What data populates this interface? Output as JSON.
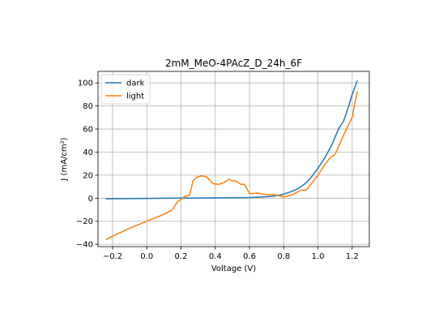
{
  "chart_data": {
    "type": "line",
    "title": "2mM_MeO-4PAcZ_D_24h_6F",
    "xlabel": "Voltage (V)",
    "ylabel": "J (mA/cm²)",
    "xlim": [
      -0.285,
      1.3
    ],
    "ylim": [
      -42,
      110
    ],
    "x_ticks": [
      -0.2,
      0.0,
      0.2,
      0.4,
      0.6,
      0.8,
      1.0,
      1.2
    ],
    "x_tick_labels": [
      "−0.2",
      "0.0",
      "0.2",
      "0.4",
      "0.6",
      "0.8",
      "1.0",
      "1.2"
    ],
    "y_ticks": [
      -40,
      -20,
      0,
      20,
      40,
      60,
      80,
      100
    ],
    "y_tick_labels": [
      "−40",
      "−20",
      "0",
      "20",
      "40",
      "60",
      "80",
      "100"
    ],
    "grid": true,
    "legend_position": "top-left",
    "series": [
      {
        "name": "dark",
        "color": "#1f77b4",
        "x": [
          -0.24,
          -0.1,
          0.0,
          0.1,
          0.2,
          0.3,
          0.4,
          0.5,
          0.6,
          0.65,
          0.7,
          0.75,
          0.8,
          0.85,
          0.88,
          0.92,
          0.96,
          1.0,
          1.04,
          1.08,
          1.12,
          1.15,
          1.18,
          1.2,
          1.23
        ],
        "values": [
          -0.5,
          -0.3,
          -0.2,
          0.0,
          0.1,
          0.2,
          0.3,
          0.4,
          0.6,
          0.9,
          1.3,
          2.0,
          3.5,
          6.0,
          8.0,
          12.0,
          18.0,
          26.0,
          35.0,
          46.0,
          60.0,
          67.0,
          80.0,
          90.0,
          102.0
        ]
      },
      {
        "name": "light",
        "color": "#ff7f0e",
        "x": [
          -0.24,
          -0.2,
          -0.1,
          0.0,
          0.1,
          0.15,
          0.18,
          0.2,
          0.22,
          0.25,
          0.27,
          0.29,
          0.32,
          0.35,
          0.37,
          0.39,
          0.42,
          0.45,
          0.48,
          0.5,
          0.52,
          0.55,
          0.57,
          0.6,
          0.62,
          0.65,
          0.68,
          0.7,
          0.75,
          0.8,
          0.85,
          0.9,
          0.93,
          0.97,
          1.0,
          1.03,
          1.07,
          1.1,
          1.13,
          1.16,
          1.2,
          1.23
        ],
        "values": [
          -36.0,
          -33.0,
          -26.0,
          -20.0,
          -14.0,
          -10.0,
          -3.0,
          -1.0,
          1.5,
          2.5,
          15.0,
          18.0,
          19.5,
          18.5,
          15.0,
          12.5,
          12.0,
          13.5,
          16.5,
          15.0,
          15.0,
          12.0,
          12.0,
          4.0,
          4.0,
          4.5,
          3.5,
          3.0,
          3.0,
          1.0,
          3.0,
          7.0,
          7.0,
          14.0,
          20.0,
          27.0,
          35.0,
          38.0,
          48.0,
          58.0,
          70.0,
          93.0
        ]
      }
    ]
  }
}
